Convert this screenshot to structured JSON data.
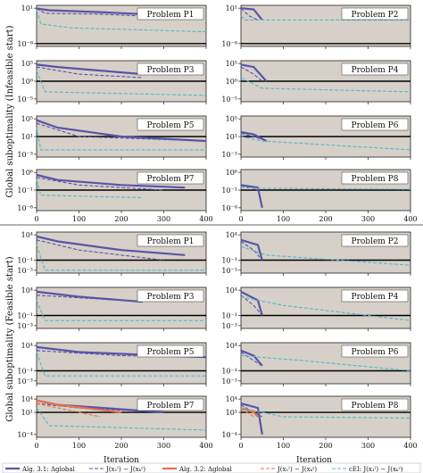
{
  "figure": {
    "ylabel_top": "Global suboptimality (Infeasible start)",
    "ylabel_bottom": "Global suboptimality (Feasible start)",
    "xlabel": "Iteration",
    "xticks": [
      "0",
      "100",
      "200",
      "300",
      "400"
    ]
  },
  "legend": {
    "items": [
      {
        "label": "Alg. 3.1: Δglobal",
        "color": "#5855a8",
        "style": "solid"
      },
      {
        "label": "J(x₁ˡ) − J(xₖˢ)",
        "color": "#5855a8",
        "style": "dashed"
      },
      {
        "label": "Alg. 3.2: Δglobal",
        "color": "#e8704a",
        "style": "solid"
      },
      {
        "label": "J(x₁ˡ) − J(xₖˢ)",
        "color": "#e8704a",
        "style": "dashed"
      },
      {
        "label": "cEI: J(x₁ˡ) − J(xₖˢ)",
        "color": "#4fb8cf",
        "style": "dashed"
      }
    ]
  },
  "colors": {
    "alg31": "#5855a8",
    "alg32": "#e8704a",
    "cei": "#4fb8cf",
    "panel_bg": "#d6d0c8"
  },
  "chart_data": [
    {
      "section": "infeasible",
      "title": "Problem P1",
      "type": "line",
      "log_y": true,
      "ytick_labels": [
        "10¹",
        "10⁻⁸"
      ],
      "xlim": [
        0,
        400
      ],
      "series": [
        {
          "values": [
            [
              0,
              8
            ],
            [
              30,
              3
            ],
            [
              150,
              1
            ],
            [
              250,
              0.3
            ],
            [
              350,
              0.1
            ]
          ]
        },
        {
          "values": [
            [
              0,
              8
            ],
            [
              20,
              0.5
            ],
            [
              150,
              0.3
            ],
            [
              250,
              0.1
            ]
          ]
        },
        {
          "values": [
            [
              0,
              3
            ],
            [
              10,
              0.001
            ],
            [
              80,
              0.0001
            ],
            [
              400,
              1e-05
            ]
          ]
        }
      ]
    },
    {
      "section": "infeasible",
      "title": "Problem P2",
      "type": "line",
      "log_y": true,
      "ytick_labels": [
        "10¹",
        "10⁻⁸"
      ],
      "xlim": [
        0,
        400
      ],
      "series": [
        {
          "values": [
            [
              0,
              10
            ],
            [
              30,
              5
            ],
            [
              50,
              0.01
            ]
          ]
        },
        {
          "values": [
            [
              0,
              8
            ],
            [
              20,
              0.1
            ],
            [
              40,
              0.01
            ]
          ]
        },
        {
          "values": [
            [
              0,
              0.1
            ],
            [
              10,
              0.01
            ],
            [
              400,
              0.01
            ]
          ]
        }
      ]
    },
    {
      "section": "infeasible",
      "title": "Problem P3",
      "type": "line",
      "log_y": true,
      "ytick_labels": [
        "10⁵",
        "10⁰",
        "10⁻⁵"
      ],
      "xlim": [
        0,
        400
      ],
      "series": [
        {
          "values": [
            [
              0,
              50000
            ],
            [
              50,
              10000
            ],
            [
              150,
              1000
            ],
            [
              250,
              100
            ]
          ]
        },
        {
          "values": [
            [
              0,
              10000
            ],
            [
              100,
              100
            ],
            [
              250,
              10
            ]
          ]
        },
        {
          "values": [
            [
              0,
              1000
            ],
            [
              20,
              0.001
            ],
            [
              400,
              0.0001
            ]
          ]
        }
      ]
    },
    {
      "section": "infeasible",
      "title": "Problem P4",
      "type": "line",
      "log_y": true,
      "ytick_labels": [
        "10⁵",
        "10⁰",
        "10⁻⁵"
      ],
      "xlim": [
        0,
        400
      ],
      "series": [
        {
          "values": [
            [
              0,
              50000
            ],
            [
              30,
              10000
            ],
            [
              60,
              1
            ]
          ]
        },
        {
          "values": [
            [
              0,
              10000
            ],
            [
              30,
              100
            ],
            [
              50,
              1
            ]
          ]
        },
        {
          "values": [
            [
              0,
              10
            ],
            [
              50,
              0.01
            ],
            [
              400,
              0.001
            ]
          ]
        }
      ]
    },
    {
      "section": "infeasible",
      "title": "Problem P5",
      "type": "line",
      "log_y": true,
      "ytick_labels": [
        "10⁵",
        "10¹",
        "10⁻³"
      ],
      "xlim": [
        0,
        400
      ],
      "series": [
        {
          "values": [
            [
              0,
              50000
            ],
            [
              50,
              1000
            ],
            [
              200,
              10
            ],
            [
              400,
              1
            ]
          ]
        },
        {
          "values": [
            [
              0,
              10000
            ],
            [
              100,
              10
            ],
            [
              400,
              1
            ]
          ]
        },
        {
          "values": [
            [
              0,
              1000
            ],
            [
              10,
              0.01
            ],
            [
              400,
              0.01
            ]
          ]
        }
      ]
    },
    {
      "section": "infeasible",
      "title": "Problem P6",
      "type": "line",
      "log_y": true,
      "ytick_labels": [
        "10⁵",
        "10¹",
        "10⁻³"
      ],
      "xlim": [
        0,
        400
      ],
      "series": [
        {
          "values": [
            [
              0,
              100
            ],
            [
              30,
              30
            ],
            [
              60,
              1
            ]
          ]
        },
        {
          "values": [
            [
              0,
              50
            ],
            [
              30,
              10
            ],
            [
              60,
              1
            ]
          ]
        },
        {
          "values": [
            [
              0,
              10
            ],
            [
              50,
              1
            ],
            [
              400,
              0.01
            ]
          ]
        }
      ]
    },
    {
      "section": "infeasible",
      "title": "Problem P7",
      "type": "line",
      "log_y": true,
      "ytick_labels": [
        "10⁶",
        "10⁻¹",
        "10⁻⁸"
      ],
      "xlim": [
        0,
        400
      ],
      "series": [
        {
          "values": [
            [
              0,
              100000
            ],
            [
              50,
              1000
            ],
            [
              200,
              10
            ],
            [
              350,
              1
            ]
          ]
        },
        {
          "values": [
            [
              0,
              10000
            ],
            [
              100,
              10
            ],
            [
              300,
              0.1
            ]
          ]
        },
        {
          "values": [
            [
              0,
              1000
            ],
            [
              10,
              0.001
            ],
            [
              250,
              0.0001
            ]
          ]
        }
      ]
    },
    {
      "section": "infeasible",
      "title": "Problem P8",
      "type": "line",
      "log_y": true,
      "ytick_labels": [
        "10⁶",
        "10⁻¹",
        "10⁻⁸"
      ],
      "xlim": [
        0,
        400
      ],
      "series": [
        {
          "values": [
            [
              0,
              10
            ],
            [
              40,
              1
            ],
            [
              50,
              1e-08
            ]
          ]
        },
        {
          "values": [
            [
              0,
              5
            ],
            [
              30,
              0.5
            ],
            [
              40,
              0.1
            ]
          ]
        },
        {
          "values": [
            [
              0,
              1
            ],
            [
              50,
              0.5
            ],
            [
              400,
              0.2
            ]
          ]
        }
      ]
    },
    {
      "section": "feasible",
      "title": "Problem P1",
      "type": "line",
      "log_y": true,
      "ytick_labels": [
        "10⁴",
        "10⁻¹",
        "10⁻³"
      ],
      "xlim": [
        0,
        400
      ],
      "series": [
        {
          "values": [
            [
              0,
              5000
            ],
            [
              50,
              500
            ],
            [
              200,
              10
            ],
            [
              350,
              1
            ]
          ]
        },
        {
          "values": [
            [
              0,
              1000
            ],
            [
              100,
              10
            ],
            [
              300,
              0.1
            ]
          ]
        },
        {
          "values": [
            [
              0,
              100
            ],
            [
              20,
              0.001
            ],
            [
              400,
              0.001
            ]
          ]
        }
      ]
    },
    {
      "section": "feasible",
      "title": "Problem P2",
      "type": "line",
      "log_y": true,
      "ytick_labels": [
        "10⁴",
        "10⁻¹",
        "10⁻³"
      ],
      "xlim": [
        0,
        400
      ],
      "series": [
        {
          "values": [
            [
              0,
              1000
            ],
            [
              40,
              100
            ],
            [
              50,
              0.1
            ]
          ]
        },
        {
          "values": [
            [
              0,
              500
            ],
            [
              30,
              10
            ],
            [
              50,
              0.1
            ]
          ]
        },
        {
          "values": [
            [
              0,
              50
            ],
            [
              60,
              1
            ],
            [
              400,
              0.01
            ]
          ]
        }
      ]
    },
    {
      "section": "feasible",
      "title": "Problem P3",
      "type": "line",
      "log_y": true,
      "ytick_labels": [
        "10⁴",
        "10⁻¹",
        "10⁻³"
      ],
      "xlim": [
        0,
        400
      ],
      "series": [
        {
          "values": [
            [
              0,
              5000
            ],
            [
              100,
              500
            ],
            [
              250,
              50
            ]
          ]
        },
        {
          "values": [
            [
              0,
              1000
            ],
            [
              200,
              100
            ],
            [
              250,
              50
            ]
          ]
        },
        {
          "values": [
            [
              0,
              100
            ],
            [
              20,
              0.01
            ],
            [
              400,
              0.01
            ]
          ]
        }
      ]
    },
    {
      "section": "feasible",
      "title": "Problem P4",
      "type": "line",
      "log_y": true,
      "ytick_labels": [
        "10⁴",
        "10⁻¹",
        "10⁻³"
      ],
      "xlim": [
        0,
        400
      ],
      "series": [
        {
          "values": [
            [
              0,
              5000
            ],
            [
              40,
              100
            ],
            [
              50,
              0.1
            ]
          ]
        },
        {
          "values": [
            [
              0,
              1000
            ],
            [
              30,
              10
            ],
            [
              50,
              0.1
            ]
          ]
        },
        {
          "values": [
            [
              0,
              500
            ],
            [
              100,
              10
            ],
            [
              400,
              0.01
            ]
          ]
        }
      ]
    },
    {
      "section": "feasible",
      "title": "Problem P5",
      "type": "line",
      "log_y": true,
      "ytick_labels": [
        "10⁴",
        "10⁻¹",
        "10⁻³"
      ],
      "xlim": [
        0,
        400
      ],
      "series": [
        {
          "values": [
            [
              0,
              5000
            ],
            [
              100,
              500
            ],
            [
              300,
              100
            ],
            [
              400,
              50
            ]
          ]
        },
        {
          "values": [
            [
              0,
              1000
            ],
            [
              200,
              100
            ],
            [
              400,
              50
            ]
          ]
        },
        {
          "values": [
            [
              0,
              500
            ],
            [
              20,
              0.01
            ],
            [
              400,
              0.01
            ]
          ]
        }
      ]
    },
    {
      "section": "feasible",
      "title": "Problem P6",
      "type": "line",
      "log_y": true,
      "ytick_labels": [
        "10⁴",
        "10⁻¹",
        "10⁻³"
      ],
      "xlim": [
        0,
        400
      ],
      "series": [
        {
          "values": [
            [
              0,
              1000
            ],
            [
              30,
              100
            ],
            [
              50,
              1
            ]
          ]
        },
        {
          "values": [
            [
              0,
              500
            ],
            [
              30,
              10
            ],
            [
              50,
              1
            ]
          ]
        },
        {
          "values": [
            [
              0,
              100
            ],
            [
              150,
              10
            ],
            [
              400,
              0.1
            ]
          ]
        }
      ]
    },
    {
      "section": "feasible",
      "title": "Problem P7",
      "type": "line",
      "log_y": true,
      "ytick_labels": [
        "10⁴",
        "10¹",
        "10⁻⁴"
      ],
      "xlim": [
        0,
        400
      ],
      "series": [
        {
          "values": [
            [
              0,
              5000
            ],
            [
              50,
              500
            ],
            [
              200,
              50
            ],
            [
              300,
              10
            ]
          ]
        },
        {
          "values": [
            [
              0,
              1000
            ],
            [
              100,
              100
            ],
            [
              300,
              10
            ]
          ]
        },
        {
          "values": [
            [
              0,
              5000
            ],
            [
              50,
              500
            ],
            [
              200,
              10
            ]
          ]
        },
        {
          "values": [
            [
              0,
              1000
            ],
            [
              100,
              10
            ],
            [
              150,
              1
            ]
          ]
        },
        {
          "values": [
            [
              0,
              100
            ],
            [
              30,
              0.01
            ],
            [
              400,
              0.001
            ]
          ]
        }
      ]
    },
    {
      "section": "feasible",
      "title": "Problem P8",
      "type": "line",
      "log_y": true,
      "ytick_labels": [
        "10⁴",
        "10¹",
        "10⁻⁴"
      ],
      "xlim": [
        0,
        400
      ],
      "series": [
        {
          "values": [
            [
              0,
              1000
            ],
            [
              40,
              100
            ],
            [
              50,
              0.0001
            ]
          ]
        },
        {
          "values": [
            [
              0,
              500
            ],
            [
              30,
              10
            ],
            [
              50,
              1
            ]
          ]
        },
        {
          "values": [
            [
              0,
              100
            ],
            [
              30,
              10
            ],
            [
              40,
              1
            ]
          ]
        },
        {
          "values": [
            [
              0,
              50
            ],
            [
              20,
              5
            ],
            [
              30,
              1
            ]
          ]
        },
        {
          "values": [
            [
              0,
              100
            ],
            [
              100,
              1
            ],
            [
              400,
              0.5
            ]
          ]
        }
      ]
    }
  ]
}
